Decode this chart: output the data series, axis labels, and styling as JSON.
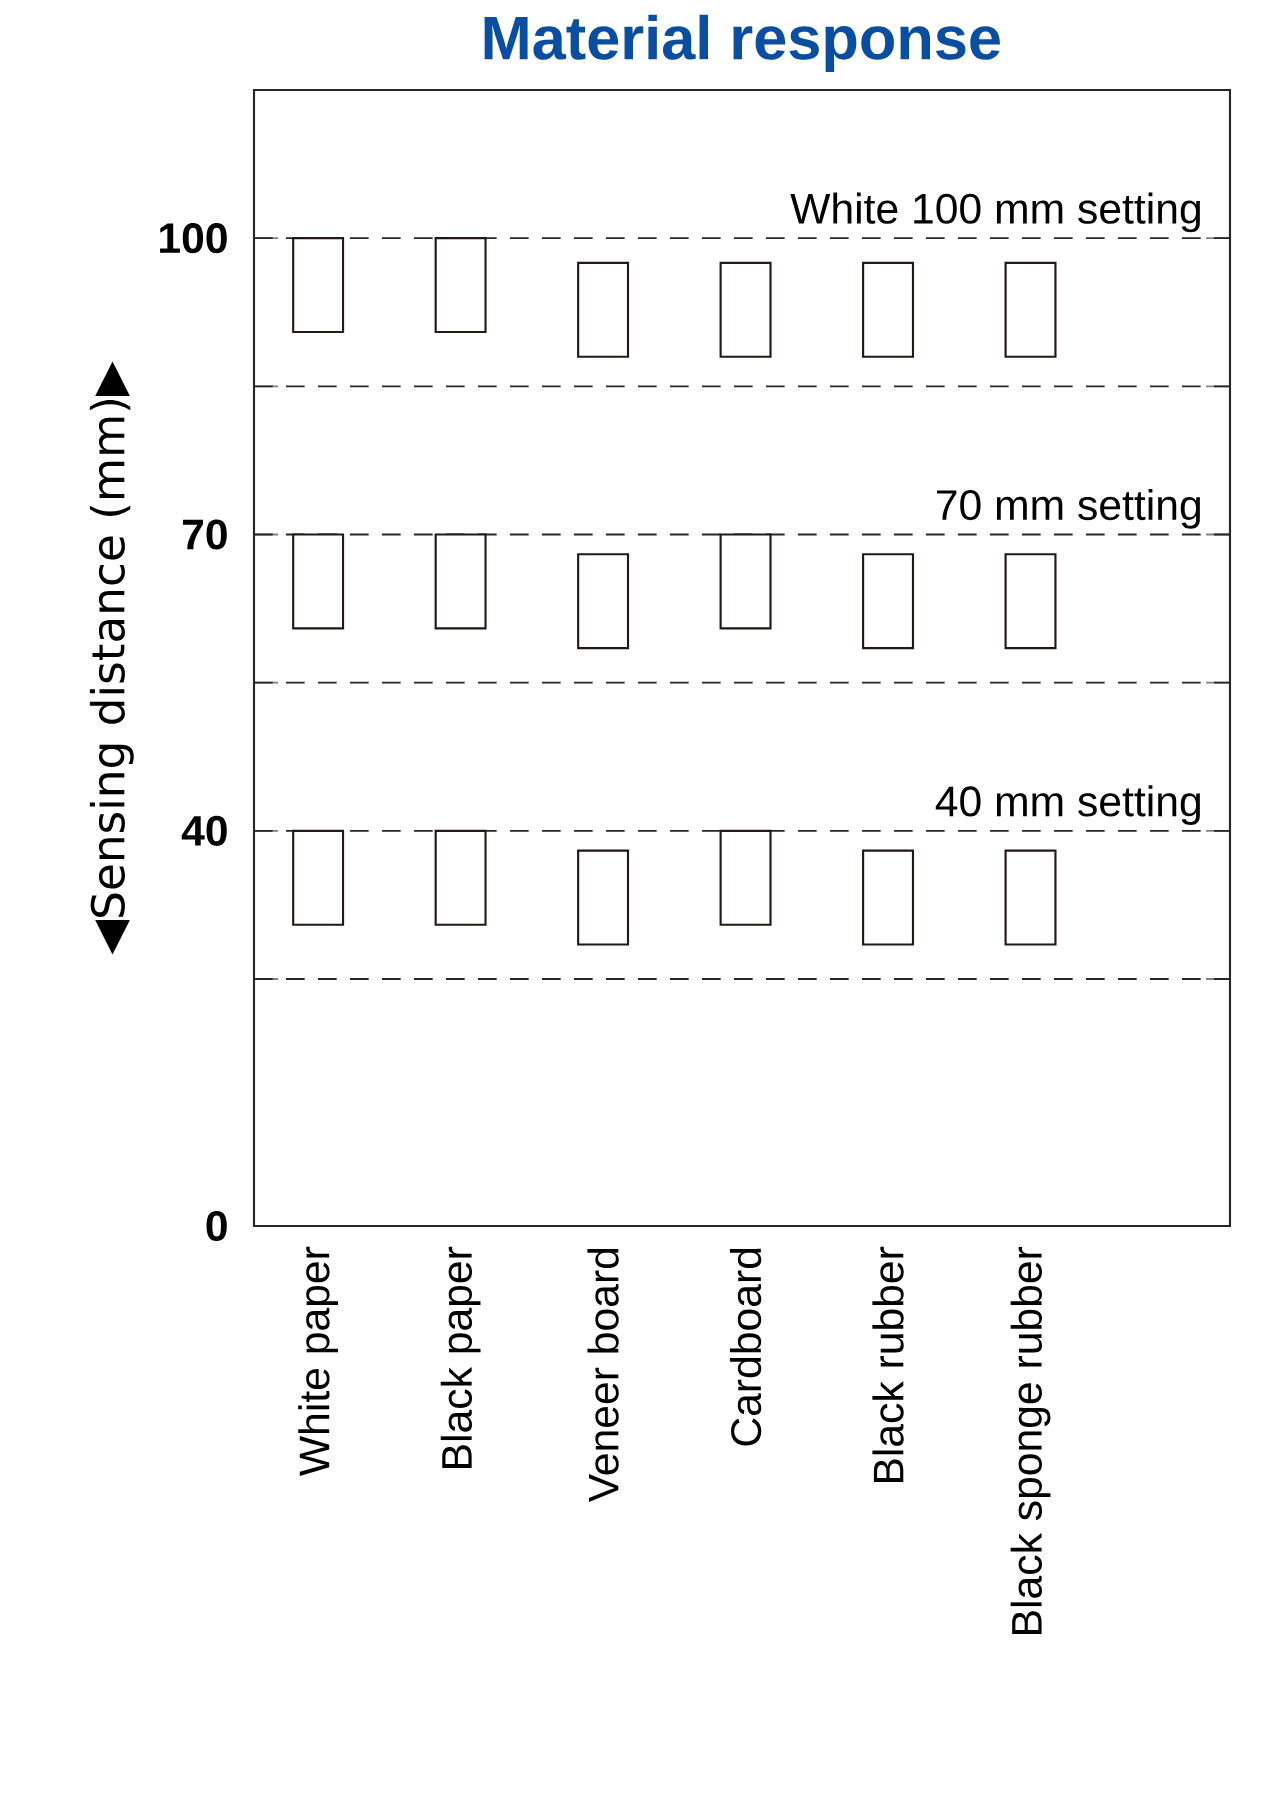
{
  "chart_data": {
    "type": "bar",
    "title": "Material response",
    "ylabel": "◀Sensing distance (mm)▶",
    "categories": [
      "White paper",
      "Black paper",
      "Veneer board",
      "Cardboard",
      "Black rubber",
      "Black sponge rubber"
    ],
    "series": [
      {
        "color": "#231815",
        "base": [
          90.5,
          90.5,
          88,
          88,
          88,
          88
        ],
        "values": [
          9.5,
          9.5,
          9.5,
          9.5,
          9.5,
          9.5
        ]
      },
      {
        "color": "#231815",
        "base": [
          60.5,
          60.5,
          58.5,
          60.5,
          58.5,
          58.5
        ],
        "values": [
          9.5,
          9.5,
          9.5,
          9.5,
          9.5,
          9.5
        ]
      },
      {
        "color": "#231815",
        "base": [
          30.5,
          30.5,
          28.5,
          30.5,
          28.5,
          28.5
        ],
        "values": [
          9.5,
          9.5,
          9.5,
          9.5,
          9.5,
          9.5
        ]
      }
    ],
    "ylim": [
      0,
      115
    ],
    "yticks": [
      0,
      {
        "value": 25,
        "label": null
      },
      40,
      {
        "value": 55,
        "label": null
      },
      70,
      {
        "value": 85,
        "label": null
      },
      100
    ],
    "ref_lines": [
      {
        "axis": "y",
        "value": 100,
        "label": "White 100 mm setting",
        "line_style": "dashed"
      },
      {
        "axis": "y",
        "value": 85,
        "line_style": "dashed"
      },
      {
        "axis": "y",
        "value": 70,
        "label": "70 mm setting",
        "line_style": "dashed"
      },
      {
        "axis": "y",
        "value": 55,
        "line_style": "dashed"
      },
      {
        "axis": "y",
        "value": 40,
        "label": "40 mm setting",
        "line_style": "dashed"
      },
      {
        "axis": "y",
        "value": 25,
        "line_style": "dashed"
      }
    ]
  }
}
